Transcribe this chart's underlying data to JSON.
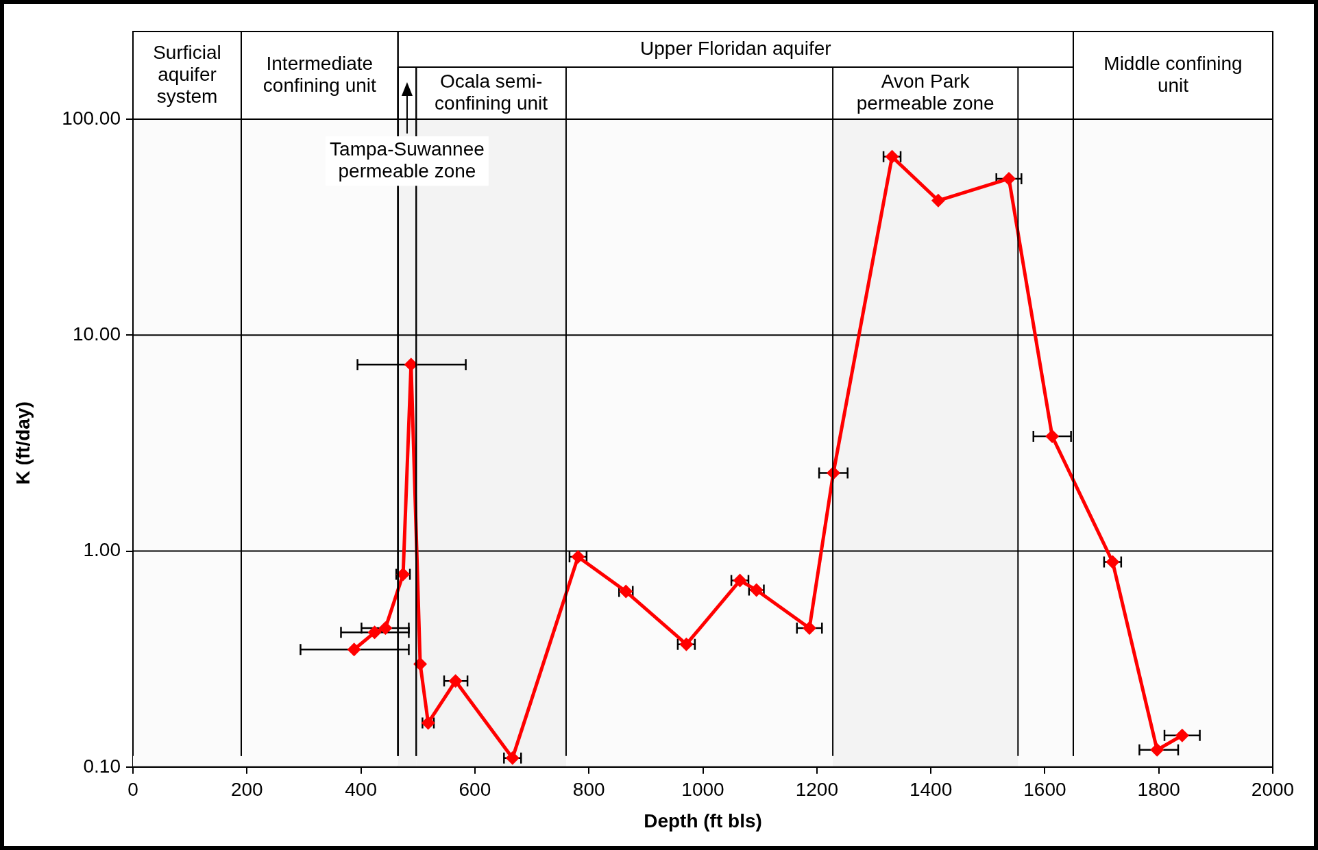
{
  "chart_data": {
    "type": "line",
    "xlabel": "Depth (ft bls)",
    "ylabel": "K (ft/day)",
    "x": [
      388,
      424,
      443,
      474,
      488,
      504,
      518,
      566,
      666,
      781,
      865,
      971,
      1065,
      1094,
      1187,
      1229,
      1332,
      1413,
      1537,
      1613,
      1719,
      1797,
      1841
    ],
    "series": [
      {
        "color": "#ff0000",
        "values": [
          0.35,
          0.42,
          0.44,
          0.78,
          7.3,
          0.3,
          0.16,
          0.25,
          0.11,
          0.94,
          0.65,
          0.37,
          0.73,
          0.66,
          0.44,
          2.3,
          67,
          42,
          53,
          3.4,
          0.89,
          0.12,
          0.14
        ],
        "xerrors": [
          [
            294,
            484
          ],
          [
            365,
            484
          ],
          [
            401,
            484
          ],
          12,
          [
            394,
            584
          ],
          null,
          10,
          [
            546,
            587
          ],
          15,
          15,
          12,
          15,
          15,
          13,
          22,
          25,
          15,
          null,
          22,
          33,
          15,
          [
            1766,
            1834
          ],
          [
            1810,
            1872
          ]
        ]
      }
    ],
    "xlim": [
      0,
      2000
    ],
    "xticks": [
      0,
      200,
      400,
      600,
      800,
      1000,
      1200,
      1400,
      1600,
      1800,
      2000
    ],
    "ylim": [
      0.1,
      100
    ],
    "yticks": [
      {
        "value": 0.1,
        "label": "0.10"
      },
      {
        "value": 1,
        "label": "1.00"
      },
      {
        "value": 10,
        "label": "10.00"
      },
      {
        "value": 100,
        "label": "100.00"
      }
    ],
    "log": "y",
    "grid": "y",
    "marker": "diamond",
    "line_style": "solid",
    "bands": [
      {
        "axis": "x",
        "from": 0,
        "to": 190,
        "label": "Surficial aquifer system",
        "color": "#fbfbfb"
      },
      {
        "axis": "x",
        "from": 190,
        "to": 465,
        "label": "Intermediate confining unit",
        "color": "#fbfbfb"
      },
      {
        "axis": "x",
        "from": 465,
        "to": 1650,
        "label": "Upper Floridan aquifer",
        "color": "#fbfbfb"
      },
      {
        "axis": "x",
        "from": 465,
        "to": 497,
        "label": "Tampa-Suwannee permeable zone",
        "color": "#f3f3f3"
      },
      {
        "axis": "x",
        "from": 497,
        "to": 760,
        "label": "Ocala semi-confining unit",
        "color": "#f3f3f3"
      },
      {
        "axis": "x",
        "from": 1228,
        "to": 1553,
        "label": "Avon Park permeable zone",
        "color": "#f3f3f3"
      },
      {
        "axis": "x",
        "from": 1650,
        "to": 2000,
        "label": "Middle confining unit",
        "color": "#fbfbfb"
      }
    ]
  }
}
